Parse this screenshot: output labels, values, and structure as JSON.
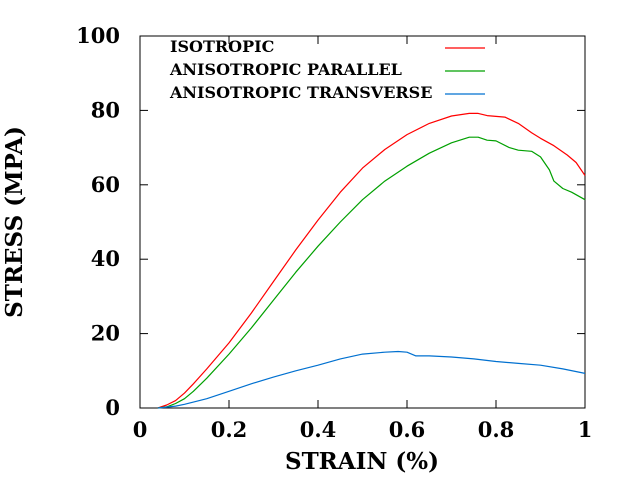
{
  "chart_data": {
    "type": "line",
    "title": "",
    "xlabel": "STRAIN (%)",
    "ylabel": "STRESS (MPA)",
    "xlim": [
      0,
      1
    ],
    "ylim": [
      0,
      100
    ],
    "x_ticks": [
      {
        "value": 0,
        "label": "0"
      },
      {
        "value": 0.2,
        "label": "0.2"
      },
      {
        "value": 0.4,
        "label": "0.4"
      },
      {
        "value": 0.6,
        "label": "0.6"
      },
      {
        "value": 0.8,
        "label": "0.8"
      },
      {
        "value": 1,
        "label": "1"
      }
    ],
    "y_ticks": [
      {
        "value": 0,
        "label": "0"
      },
      {
        "value": 20,
        "label": "20"
      },
      {
        "value": 40,
        "label": "40"
      },
      {
        "value": 60,
        "label": "60"
      },
      {
        "value": 80,
        "label": "80"
      },
      {
        "value": 100,
        "label": "100"
      }
    ],
    "grid": false,
    "legend_position": "top-right",
    "series": [
      {
        "name": "ISOTROPIC",
        "color": "#ff0000",
        "x": [
          0.04,
          0.06,
          0.08,
          0.1,
          0.12,
          0.15,
          0.2,
          0.25,
          0.3,
          0.35,
          0.4,
          0.45,
          0.5,
          0.55,
          0.6,
          0.65,
          0.7,
          0.74,
          0.76,
          0.78,
          0.8,
          0.82,
          0.85,
          0.88,
          0.9,
          0.93,
          0.96,
          0.98,
          1.0
        ],
        "y": [
          0,
          0.8,
          2.0,
          4.0,
          6.5,
          10.5,
          17.5,
          25.5,
          34.0,
          42.5,
          50.5,
          58.0,
          64.5,
          69.5,
          73.5,
          76.5,
          78.5,
          79.2,
          79.2,
          78.6,
          78.4,
          78.2,
          76.5,
          74.0,
          72.5,
          70.5,
          68.0,
          66.0,
          62.5
        ]
      },
      {
        "name": "ANISOTROPIC PARALLEL",
        "color": "#00a000",
        "x": [
          0.04,
          0.06,
          0.08,
          0.1,
          0.12,
          0.15,
          0.2,
          0.25,
          0.3,
          0.35,
          0.4,
          0.45,
          0.5,
          0.55,
          0.6,
          0.65,
          0.7,
          0.74,
          0.76,
          0.78,
          0.8,
          0.83,
          0.85,
          0.88,
          0.9,
          0.92,
          0.93,
          0.95,
          0.97,
          1.0
        ],
        "y": [
          0,
          0.3,
          1.2,
          2.5,
          4.5,
          8.0,
          14.5,
          21.5,
          29.0,
          36.5,
          43.5,
          50.0,
          56.0,
          61.0,
          65.0,
          68.5,
          71.3,
          72.8,
          72.8,
          72.0,
          71.8,
          70.0,
          69.3,
          69.0,
          67.5,
          64.0,
          61.0,
          59.0,
          58.0,
          56.0
        ]
      },
      {
        "name": "ANISOTROPIC TRANSVERSE",
        "color": "#0070d0",
        "x": [
          0.04,
          0.08,
          0.1,
          0.15,
          0.2,
          0.25,
          0.3,
          0.35,
          0.4,
          0.45,
          0.5,
          0.55,
          0.58,
          0.6,
          0.62,
          0.65,
          0.7,
          0.75,
          0.8,
          0.85,
          0.9,
          0.95,
          1.0
        ],
        "y": [
          0,
          0.5,
          1.0,
          2.5,
          4.5,
          6.5,
          8.3,
          10.0,
          11.5,
          13.2,
          14.5,
          15.0,
          15.2,
          15.0,
          14.0,
          14.0,
          13.7,
          13.2,
          12.5,
          12.0,
          11.5,
          10.5,
          9.3
        ]
      }
    ]
  }
}
